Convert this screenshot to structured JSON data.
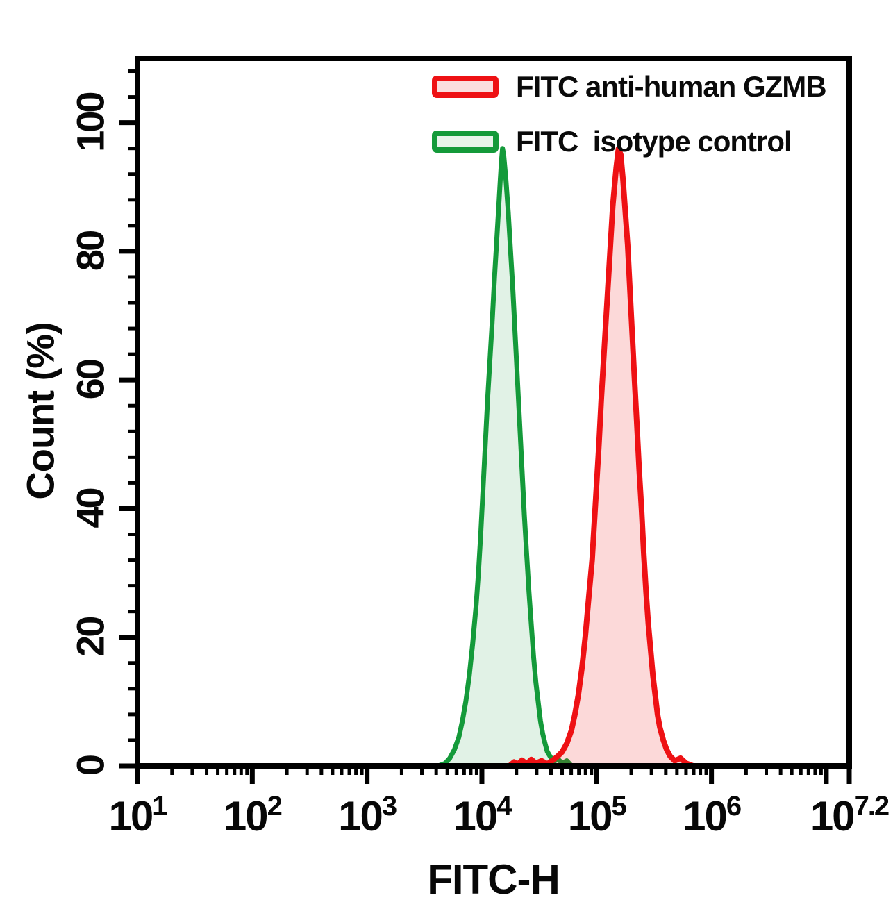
{
  "legend": {
    "items": [
      {
        "label": "FITC anti-human GZMB",
        "stroke": "#ee1114",
        "fill": "#fbdddd"
      },
      {
        "label": "FITC  isotype control",
        "stroke": "#149a3a",
        "fill": "#e7f4ea"
      }
    ]
  },
  "chart_data": {
    "type": "area",
    "title": "",
    "xlabel": "FITC-H",
    "ylabel": "Count (%)",
    "x_scale": "log10",
    "x_log_range": [
      1,
      7.2
    ],
    "ylim": [
      0,
      110
    ],
    "grid": false,
    "legend_position": "top-inside",
    "frame_color": "#000000",
    "x_axis": {
      "base": "10",
      "major_ticks": [
        {
          "log": 1,
          "exp": "1"
        },
        {
          "log": 2,
          "exp": "2"
        },
        {
          "log": 3,
          "exp": "3"
        },
        {
          "log": 4,
          "exp": "4"
        },
        {
          "log": 5,
          "exp": "5"
        },
        {
          "log": 6,
          "exp": "6"
        },
        {
          "log": 7,
          "exp": ""
        },
        {
          "log": 7.2,
          "exp": "7.2"
        }
      ],
      "minor_decades": [
        1,
        2,
        3,
        4,
        5,
        6
      ]
    },
    "y_axis": {
      "major_ticks": [
        0,
        20,
        40,
        60,
        80,
        100
      ],
      "minor_step": 4,
      "minor_min": 4,
      "minor_max": 108
    },
    "series": [
      {
        "name": "FITC isotype control",
        "stroke": "#149a3a",
        "fill": "rgba(22,154,60,0.13)",
        "stroke_width": 7,
        "peak": {
          "log10_x": 4.18,
          "pct": 96
        },
        "points": [
          [
            3.62,
            0
          ],
          [
            3.68,
            0.4
          ],
          [
            3.72,
            1.2
          ],
          [
            3.76,
            2.5
          ],
          [
            3.8,
            4.5
          ],
          [
            3.83,
            7
          ],
          [
            3.86,
            10
          ],
          [
            3.89,
            14
          ],
          [
            3.92,
            19
          ],
          [
            3.95,
            25
          ],
          [
            3.97,
            30
          ],
          [
            3.99,
            36
          ],
          [
            4.01,
            43
          ],
          [
            4.03,
            50
          ],
          [
            4.05,
            57
          ],
          [
            4.07,
            63
          ],
          [
            4.09,
            69
          ],
          [
            4.11,
            76
          ],
          [
            4.13,
            82
          ],
          [
            4.15,
            88
          ],
          [
            4.16,
            91
          ],
          [
            4.17,
            94
          ],
          [
            4.18,
            96
          ],
          [
            4.19,
            95
          ],
          [
            4.21,
            91
          ],
          [
            4.23,
            86
          ],
          [
            4.25,
            80
          ],
          [
            4.27,
            74
          ],
          [
            4.29,
            67
          ],
          [
            4.31,
            60
          ],
          [
            4.33,
            53
          ],
          [
            4.35,
            46
          ],
          [
            4.37,
            39
          ],
          [
            4.39,
            33
          ],
          [
            4.41,
            27
          ],
          [
            4.43,
            22
          ],
          [
            4.45,
            17
          ],
          [
            4.47,
            13
          ],
          [
            4.49,
            10
          ],
          [
            4.51,
            7
          ],
          [
            4.53,
            5
          ],
          [
            4.55,
            3.5
          ],
          [
            4.57,
            2.2
          ],
          [
            4.6,
            1.3
          ],
          [
            4.63,
            0.7
          ],
          [
            4.66,
            1.1
          ],
          [
            4.7,
            0.4
          ],
          [
            4.74,
            0.8
          ],
          [
            4.78,
            0
          ]
        ]
      },
      {
        "name": "FITC anti-human GZMB",
        "stroke": "#ee1114",
        "fill": "rgba(238,17,20,0.16)",
        "stroke_width": 8,
        "peak": {
          "log10_x": 5.19,
          "pct": 96
        },
        "points": [
          [
            4.24,
            0
          ],
          [
            4.28,
            0.6
          ],
          [
            4.31,
            0.2
          ],
          [
            4.35,
            0.9
          ],
          [
            4.39,
            0.3
          ],
          [
            4.43,
            1.0
          ],
          [
            4.47,
            0.4
          ],
          [
            4.52,
            0.8
          ],
          [
            4.57,
            0.3
          ],
          [
            4.62,
            0.9
          ],
          [
            4.66,
            1.5
          ],
          [
            4.7,
            2.2
          ],
          [
            4.74,
            3.5
          ],
          [
            4.78,
            5.5
          ],
          [
            4.81,
            8
          ],
          [
            4.84,
            11
          ],
          [
            4.87,
            15
          ],
          [
            4.9,
            20
          ],
          [
            4.93,
            26
          ],
          [
            4.96,
            32
          ],
          [
            4.98,
            38
          ],
          [
            5.0,
            44
          ],
          [
            5.02,
            50
          ],
          [
            5.04,
            57
          ],
          [
            5.06,
            63
          ],
          [
            5.08,
            69
          ],
          [
            5.1,
            75
          ],
          [
            5.12,
            81
          ],
          [
            5.14,
            87
          ],
          [
            5.16,
            91
          ],
          [
            5.17,
            93
          ],
          [
            5.19,
            96
          ],
          [
            5.21,
            95
          ],
          [
            5.23,
            91
          ],
          [
            5.25,
            86
          ],
          [
            5.27,
            81
          ],
          [
            5.29,
            74
          ],
          [
            5.31,
            67
          ],
          [
            5.33,
            60
          ],
          [
            5.35,
            53
          ],
          [
            5.37,
            46
          ],
          [
            5.39,
            40
          ],
          [
            5.41,
            33
          ],
          [
            5.43,
            27
          ],
          [
            5.45,
            22
          ],
          [
            5.47,
            18
          ],
          [
            5.49,
            14
          ],
          [
            5.51,
            11
          ],
          [
            5.53,
            8
          ],
          [
            5.55,
            6
          ],
          [
            5.58,
            4
          ],
          [
            5.61,
            2.5
          ],
          [
            5.64,
            1.5
          ],
          [
            5.68,
            0.8
          ],
          [
            5.73,
            1.2
          ],
          [
            5.78,
            0.4
          ],
          [
            5.84,
            0
          ]
        ]
      }
    ]
  }
}
